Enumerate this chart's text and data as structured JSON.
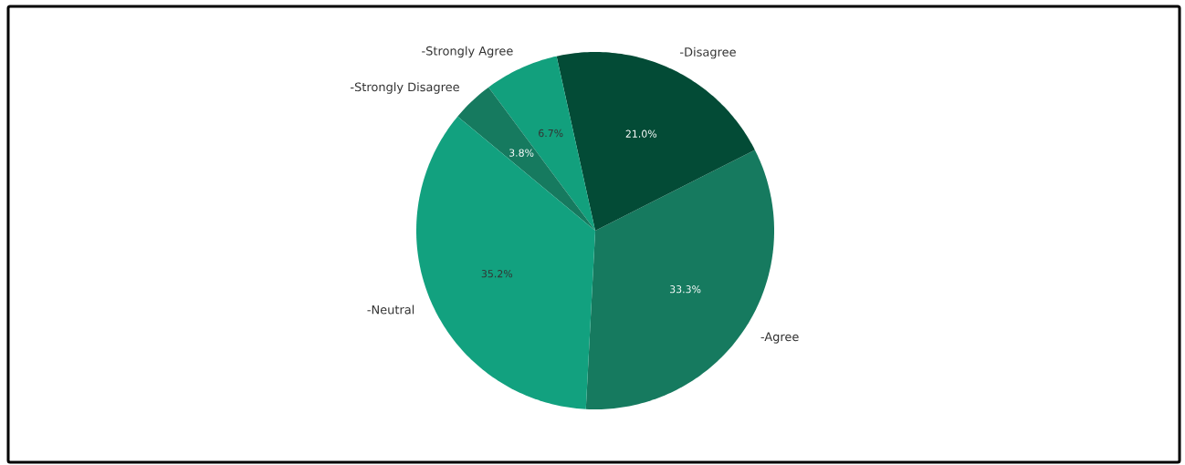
{
  "chart_data": {
    "type": "pie",
    "categories": [
      "-Agree",
      "-Disagree",
      "-Strongly Agree",
      "-Strongly Disagree",
      "-Neutral"
    ],
    "values": [
      33.3,
      21.0,
      6.7,
      3.8,
      35.2
    ],
    "colors": [
      "#167a5f",
      "#034b36",
      "#12a07d",
      "#167a5f",
      "#12a17f"
    ],
    "value_labels": [
      "33.3%",
      "21.0%",
      "6.7%",
      "3.8%",
      "35.2%"
    ]
  }
}
